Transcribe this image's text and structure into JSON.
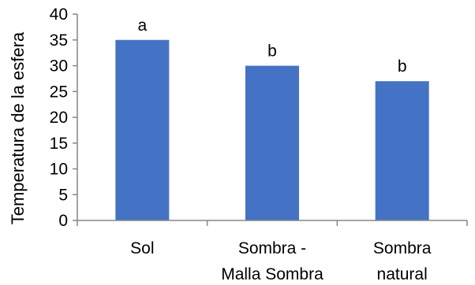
{
  "chart_data": {
    "type": "bar",
    "title": "",
    "xlabel": "",
    "ylabel": "Temperatura de la esfera",
    "ylim": [
      0,
      40
    ],
    "yticks": [
      0,
      5,
      10,
      15,
      20,
      25,
      30,
      35,
      40
    ],
    "grid": false,
    "categories": [
      [
        "Sol"
      ],
      [
        "Sombra -",
        "Malla Sombra"
      ],
      [
        "Sombra",
        "natural"
      ]
    ],
    "values": [
      35,
      30,
      27
    ],
    "labels": [
      "a",
      "b",
      "b"
    ],
    "bar_color": "#4472C4",
    "axis_color": "#868686"
  }
}
